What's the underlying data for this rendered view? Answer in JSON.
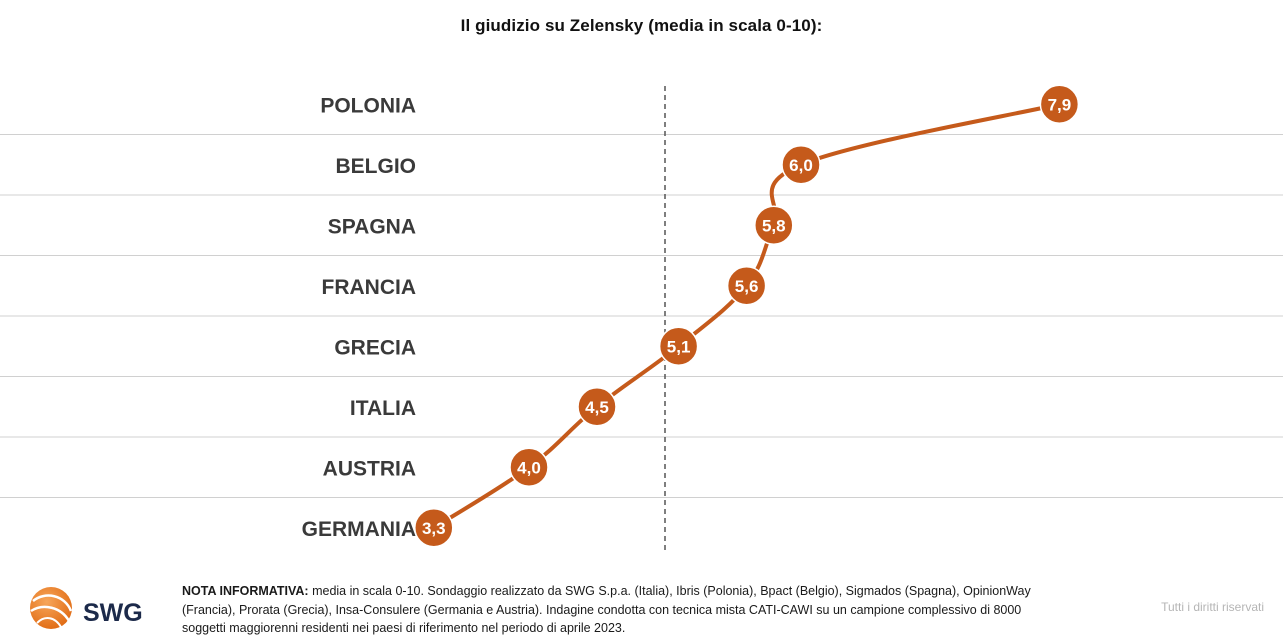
{
  "chart_data": {
    "type": "line",
    "title": "Il giudizio su Zelensky (media in scala 0-10):",
    "categories": [
      "POLONIA",
      "BELGIO",
      "SPAGNA",
      "FRANCIA",
      "GRECIA",
      "ITALIA",
      "AUSTRIA",
      "GERMANIA"
    ],
    "values": [
      7.9,
      6.0,
      5.8,
      5.6,
      5.1,
      4.5,
      4.0,
      3.3
    ],
    "value_labels": [
      "7,9",
      "6,0",
      "5,8",
      "5,6",
      "5,1",
      "4,5",
      "4,0",
      "3,3"
    ],
    "orientation": "horizontal",
    "reference_line": 5,
    "line_color": "#c55a1b",
    "marker_color": "#c55a1b"
  },
  "footer": {
    "logo_text": "SWG",
    "note_label": "NOTA INFORMATIVA:",
    "note_text": " media in scala 0-10. Sondaggio realizzato da SWG S.p.a. (Italia), Ibris (Polonia), Bpact (Belgio), Sigmados (Spagna), OpinionWay (Francia), Prorata (Grecia), Insa-Consulere (Germania e Austria). Indagine condotta con tecnica mista CATI-CAWI su un campione complessivo di 8000 soggetti maggiorenni residenti nei paesi di riferimento nel periodo di aprile 2023.",
    "rights": "Tutti i diritti riservati"
  }
}
